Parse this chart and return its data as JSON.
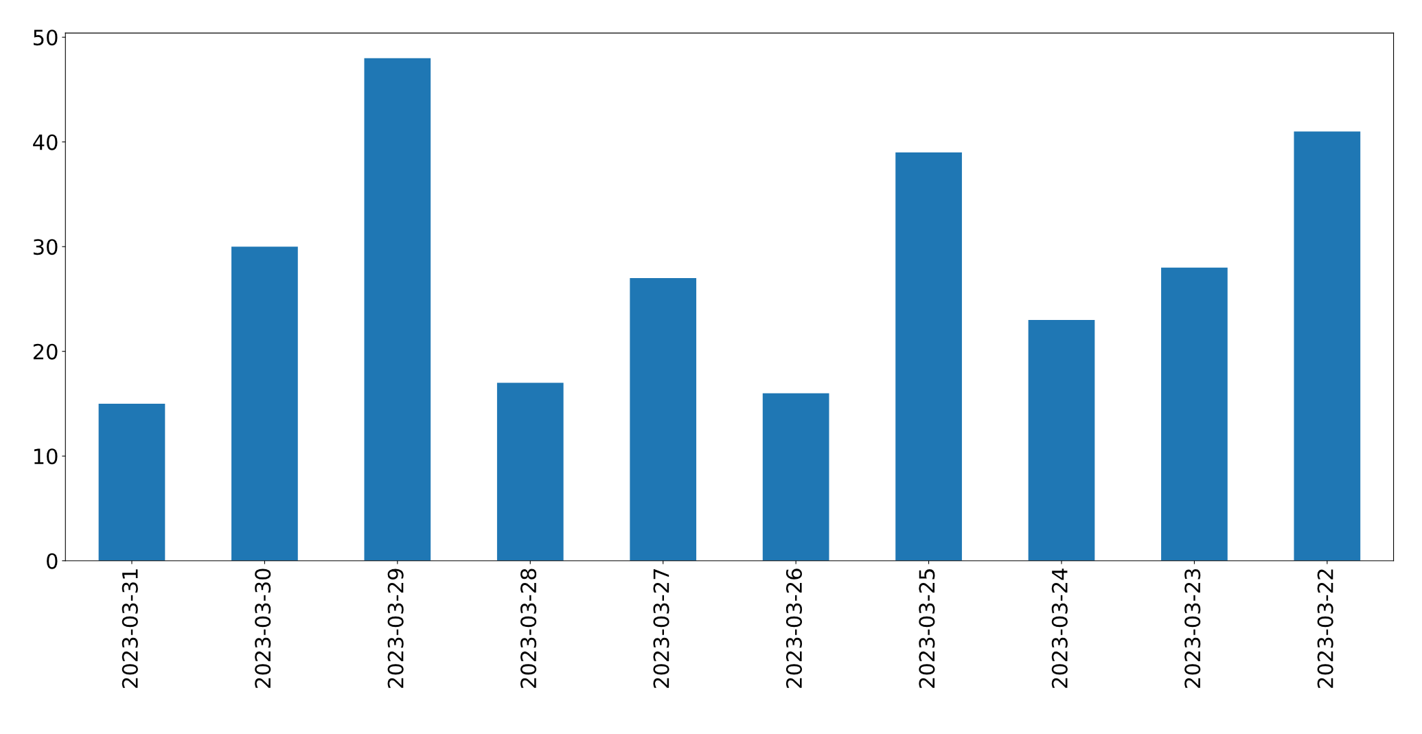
{
  "chart_data": {
    "type": "bar",
    "categories": [
      "2023-03-31",
      "2023-03-30",
      "2023-03-29",
      "2023-03-28",
      "2023-03-27",
      "2023-03-26",
      "2023-03-25",
      "2023-03-24",
      "2023-03-23",
      "2023-03-22"
    ],
    "values": [
      15,
      30,
      48,
      17,
      27,
      16,
      39,
      23,
      28,
      41
    ],
    "color": "#1f77b4",
    "ylim": [
      0,
      50.4
    ],
    "yticks": [
      0,
      10,
      20,
      30,
      40,
      50
    ],
    "grid": false,
    "legend": false
  }
}
